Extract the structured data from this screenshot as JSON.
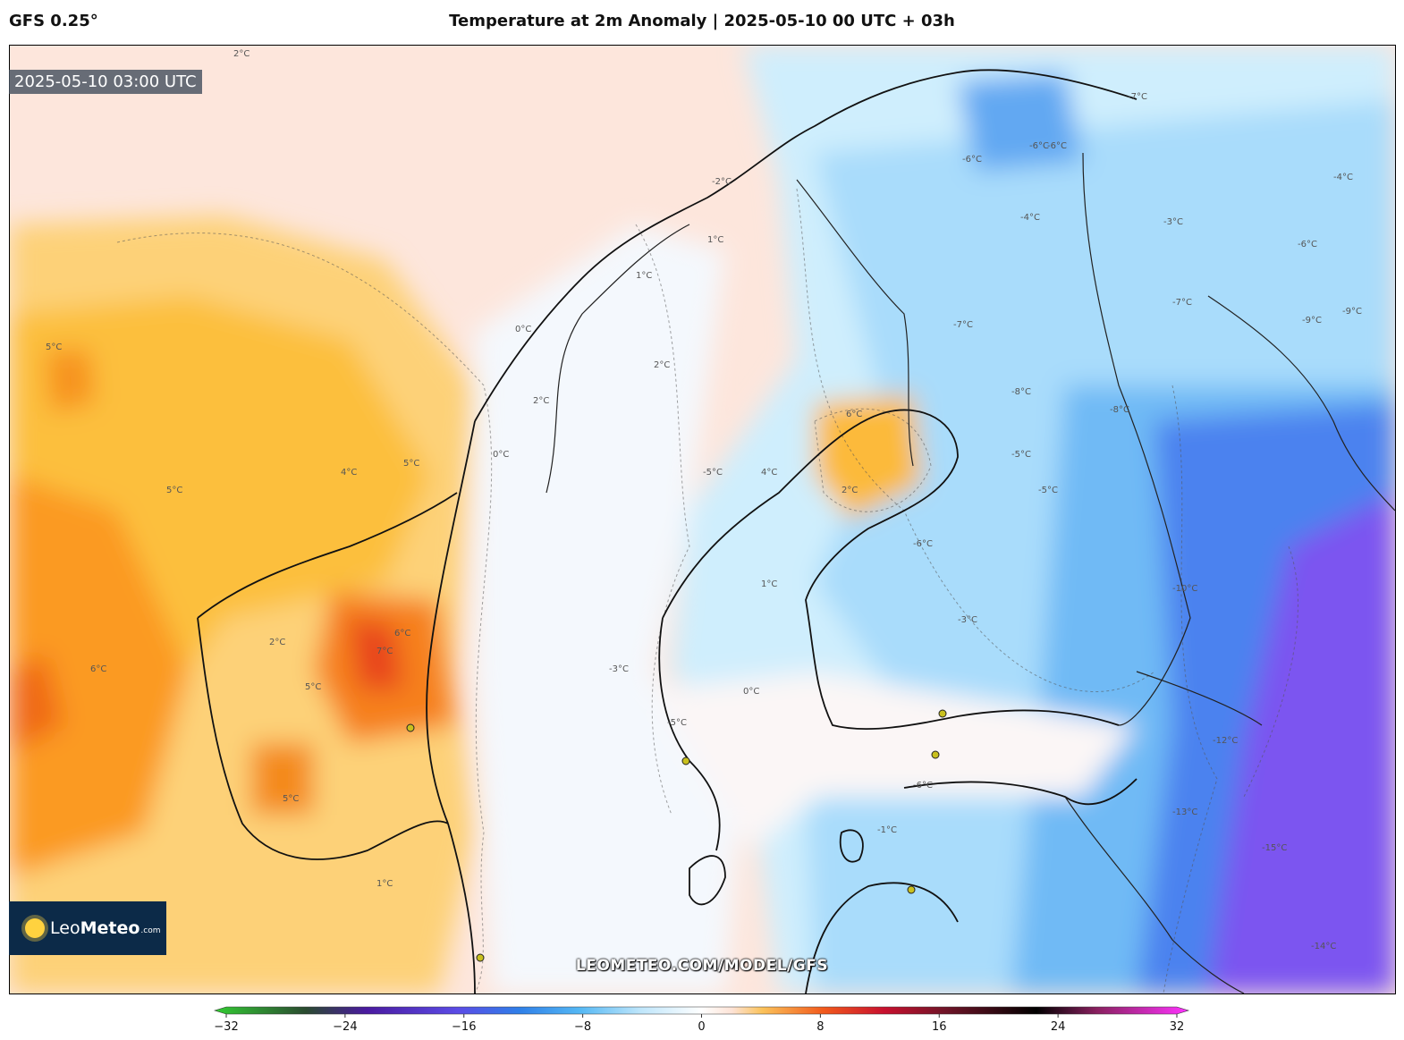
{
  "header": {
    "model": "GFS 0.25°",
    "title": "Temperature at 2m Anomaly | 2025-05-10 00 UTC + 03h"
  },
  "valid_time": "2025-05-10 03:00 UTC",
  "logo": {
    "part1": "Leo",
    "part2": "Meteo",
    "part3": ".com"
  },
  "watermark": "LEOMETEO.COM/MODEL/GFS",
  "colorbar": {
    "ticks": [
      "−32",
      "−24",
      "−16",
      "−8",
      "0",
      "8",
      "16",
      "24",
      "32"
    ],
    "tick_values": [
      -32,
      -24,
      -16,
      -8,
      0,
      8,
      16,
      24,
      32
    ],
    "range": [
      -32,
      32
    ],
    "stops": [
      {
        "v": -32,
        "c": "#33cc33"
      },
      {
        "v": -26,
        "c": "#2a4a30"
      },
      {
        "v": -22,
        "c": "#4a1aa0"
      },
      {
        "v": -16,
        "c": "#5b4ce6"
      },
      {
        "v": -12,
        "c": "#2f7fe8"
      },
      {
        "v": -8,
        "c": "#55b8f4"
      },
      {
        "v": -4,
        "c": "#bfe6fb"
      },
      {
        "v": 0,
        "c": "#ffffff"
      },
      {
        "v": 2,
        "c": "#fde3d6"
      },
      {
        "v": 4,
        "c": "#fbc25a"
      },
      {
        "v": 8,
        "c": "#f25a1c"
      },
      {
        "v": 12,
        "c": "#c8102e"
      },
      {
        "v": 16,
        "c": "#701428"
      },
      {
        "v": 22,
        "c": "#000000"
      },
      {
        "v": 26,
        "c": "#8a2060"
      },
      {
        "v": 32,
        "c": "#ff33ff"
      }
    ]
  },
  "contour_labels": [
    "2°C",
    "5°C",
    "6°C",
    "5°C",
    "4°C",
    "5°C",
    "7°C",
    "6°C",
    "6°C",
    "5°C",
    "2°C",
    "5°C",
    "1°C",
    "2°C",
    "1°C",
    "0°C",
    "0°C",
    "-2°C",
    "1°C",
    "2°C",
    "1°C",
    "0°C",
    "-3°C",
    "-5°C",
    "-1°C",
    "-5°C",
    "-6°C",
    "-5°C",
    "-8°C",
    "-4°C",
    "-6°C",
    "-6°C",
    "-7°C",
    "-5°C",
    "-10°C",
    "-12°C",
    "-13°C",
    "-15°C",
    "-14°C",
    "-4°C",
    "-3°C",
    "-6°C",
    "-7°C",
    "-9°C",
    "-6°C",
    "-8°C",
    "-6°C",
    "-7°C",
    "-9°C",
    "4°C",
    "2°C",
    "-3°C"
  ]
}
